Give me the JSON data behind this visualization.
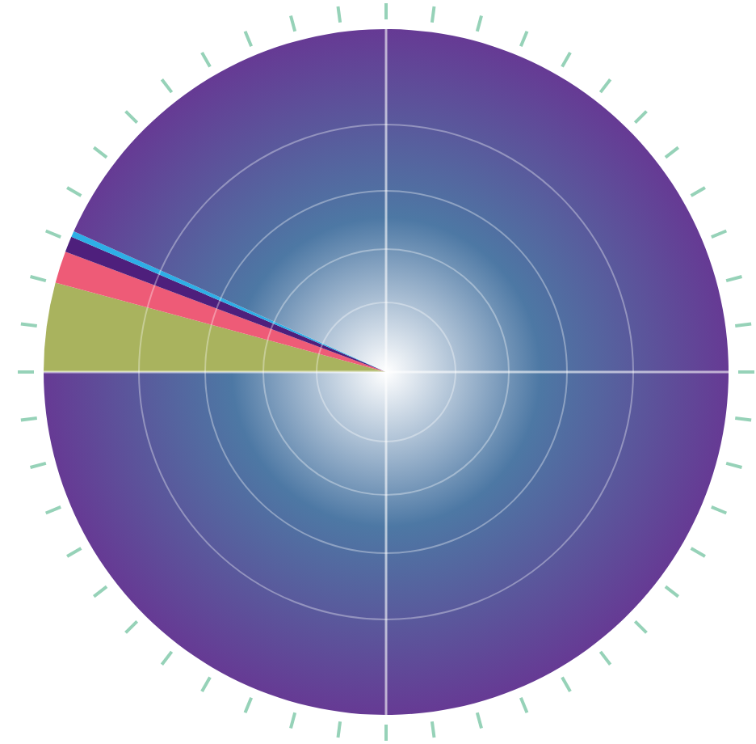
{
  "chart_data": {
    "type": "pie",
    "categories": [
      null,
      null,
      null,
      null,
      null
    ],
    "values": [
      4.2,
      1.5,
      0.75,
      0.28,
      93.27
    ],
    "colors": [
      "#a9b35e",
      "#ee5b77",
      "#4e1f7c",
      "#2eaee6",
      "#663a94"
    ]
  }
}
